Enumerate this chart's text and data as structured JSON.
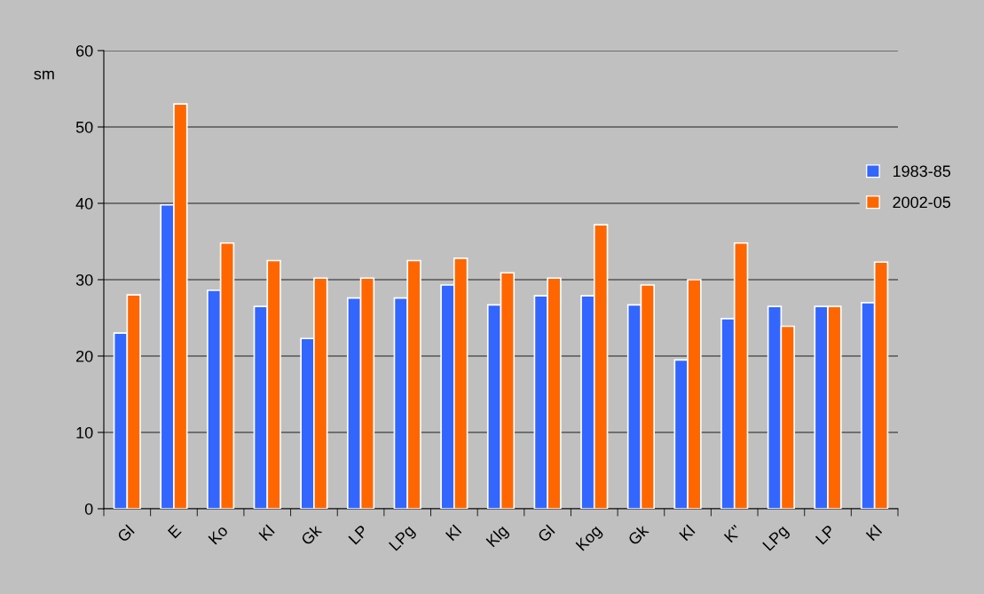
{
  "chart_data": {
    "type": "bar",
    "ylabel": "sm",
    "categories": [
      "Gl",
      "E",
      "Ko",
      "Kl",
      "Gk",
      "LP",
      "LPg",
      "Kl",
      "Klg",
      "Gl",
      "Kog",
      "Gk",
      "Kl",
      "K''",
      "LPg",
      "LP",
      "Kl"
    ],
    "series": [
      {
        "name": "1983-85",
        "color": "#3366ff",
        "values": [
          23,
          39.8,
          28.6,
          26.5,
          22.3,
          27.6,
          27.6,
          29.3,
          26.7,
          27.9,
          27.9,
          26.7,
          19.5,
          24.9,
          26.5,
          26.5,
          27
        ]
      },
      {
        "name": "2002-05",
        "color": "#ff6600",
        "values": [
          28,
          53,
          34.8,
          32.5,
          30.2,
          30.2,
          32.5,
          32.8,
          30.9,
          30.2,
          37.2,
          29.3,
          30,
          34.8,
          23.9,
          26.5,
          32.3
        ]
      }
    ],
    "ylim": [
      0,
      60
    ],
    "yticks": [
      0,
      10,
      20,
      30,
      40,
      50,
      60
    ],
    "grid": "y",
    "legend": "right"
  }
}
